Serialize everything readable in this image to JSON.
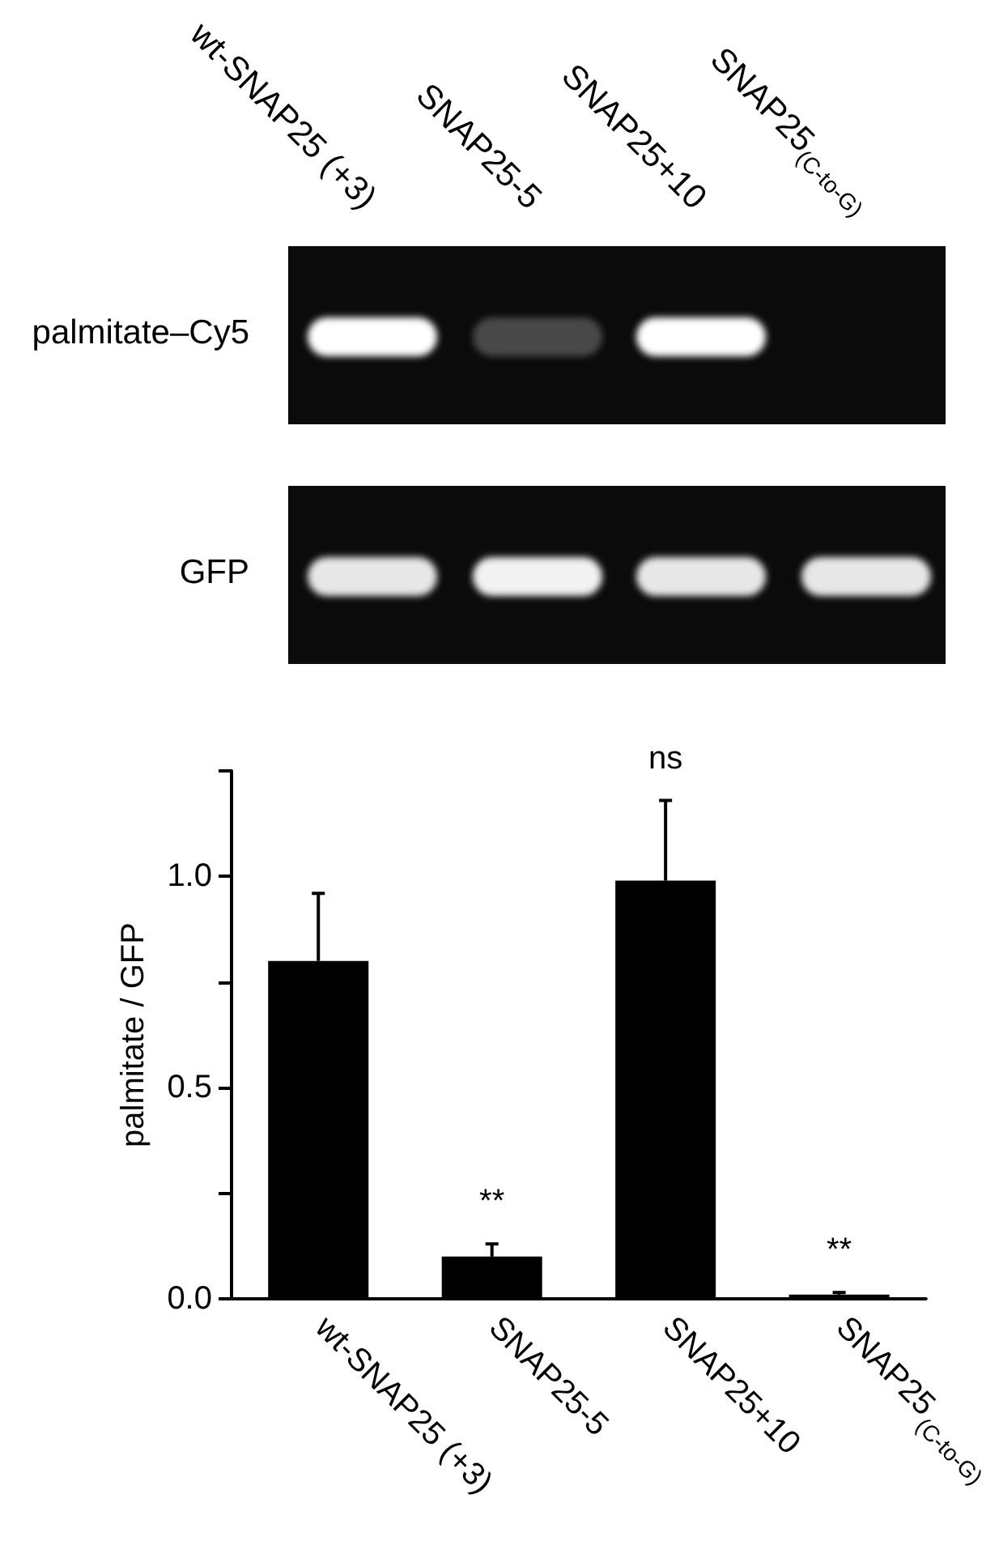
{
  "chart_data": {
    "type": "bar",
    "categories": [
      "wt-SNAP25 (+3)",
      "SNAP25-5",
      "SNAP25+10",
      "SNAP25$_{(C-to-G)}$"
    ],
    "values": [
      0.8,
      0.1,
      0.99,
      0.01
    ],
    "color": "#000000",
    "errors": [
      [
        0.8,
        0.96
      ],
      [
        0.1,
        0.13
      ],
      [
        0.99,
        1.18
      ],
      [
        0.01,
        0.015
      ]
    ],
    "ylabel": "palmitate / GFP",
    "ylim": [
      0,
      1.25
    ],
    "yticks": [
      {
        "value": 0,
        "label": "0.0"
      },
      {
        "value": 0.25,
        "label": null
      },
      {
        "value": 0.5,
        "label": "0.5"
      },
      {
        "value": 0.75,
        "label": null
      },
      {
        "value": 1,
        "label": "1.0"
      },
      {
        "value": 1.25,
        "label": null
      }
    ],
    "annotations": [
      "palmitate–Cy5",
      "GFP",
      {
        "text": "**",
        "x": "SNAP25-5",
        "y": 0.13
      },
      {
        "text": "ns",
        "x": "SNAP25+10",
        "y": 1.18
      },
      {
        "text": "**",
        "x": "SNAP25$_{(C-to-G)}$",
        "y": 0.015
      }
    ]
  }
}
